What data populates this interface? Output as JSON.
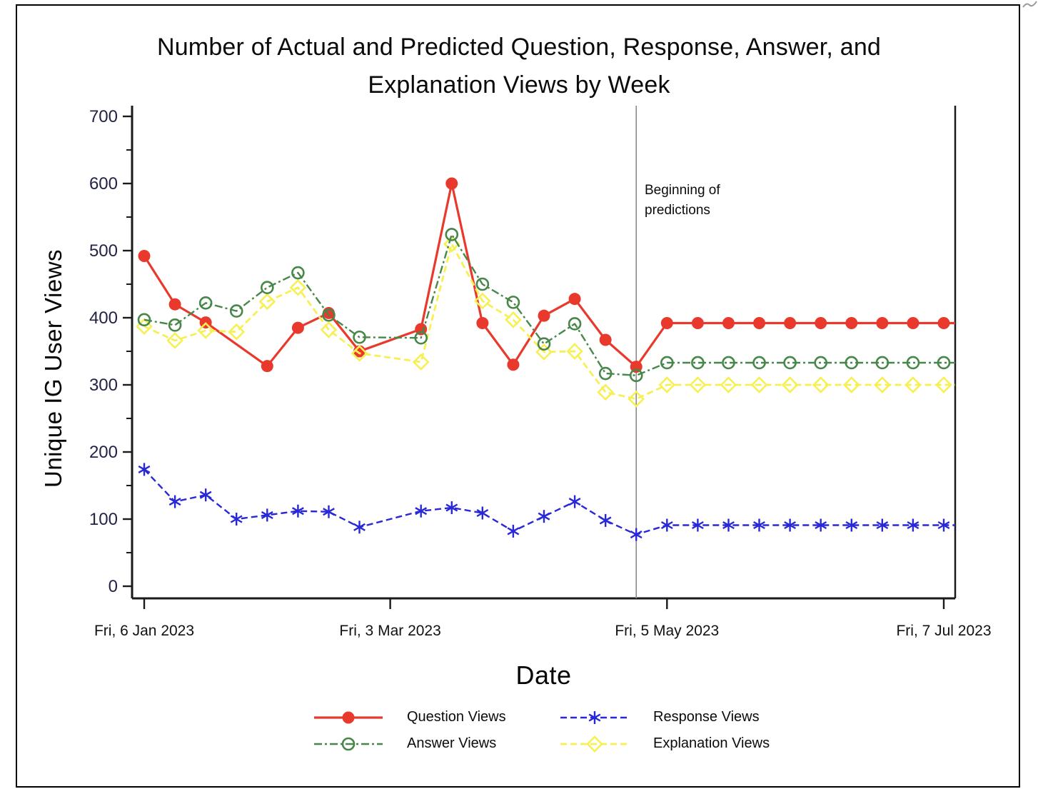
{
  "title": {
    "line1": "Number of Actual and Predicted Question, Response, Answer, and",
    "line2": "Explanation Views by Week"
  },
  "y_axis": {
    "label": "Unique IG User Views",
    "tick_labels": [
      "0",
      "100",
      "200",
      "300",
      "400",
      "500",
      "600",
      "700"
    ],
    "min": 0,
    "max": 700,
    "major_step": 100,
    "minor_step": 50,
    "tick_label_color": "#232347"
  },
  "x_axis": {
    "label": "Date",
    "ticks": [
      {
        "label": "Fri, 6 Jan 2023",
        "week": 0
      },
      {
        "label": "Fri, 3 Mar 2023",
        "week": 8
      },
      {
        "label": "Fri, 5 May 2023",
        "week": 17
      },
      {
        "label": "Fri, 7 Jul 2023",
        "week": 26
      }
    ],
    "total_weeks": 26,
    "tick_label_color": "#111111"
  },
  "annotation": {
    "line1": "Beginning of",
    "line2": "predictions",
    "week": 16,
    "line_color": "#8a8a8a"
  },
  "chart_data": {
    "type": "line",
    "title": "Number of Actual and Predicted Question, Response, Answer, and Explanation Views by Week",
    "xlabel": "Date",
    "ylabel": "Unique IG User Views",
    "ylim": [
      0,
      700
    ],
    "x_unit": "weeks since Fri, 6 Jan 2023",
    "grid": false,
    "legend_position": "bottom",
    "prediction_boundary_week": 16,
    "series": [
      {
        "name": "Question Views",
        "color": "#e8392c",
        "line_style": "solid",
        "marker": "filled-circle",
        "points": [
          [
            0,
            492
          ],
          [
            1,
            420
          ],
          [
            2,
            393
          ],
          [
            4,
            328
          ],
          [
            5,
            385
          ],
          [
            6,
            407
          ],
          [
            7,
            350
          ],
          [
            9,
            383
          ],
          [
            10,
            600
          ],
          [
            11,
            392
          ],
          [
            12,
            330
          ],
          [
            13,
            403
          ],
          [
            14,
            428
          ],
          [
            15,
            367
          ],
          [
            16,
            327
          ],
          [
            17,
            392
          ],
          [
            18,
            392
          ],
          [
            19,
            392
          ],
          [
            20,
            392
          ],
          [
            21,
            392
          ],
          [
            22,
            392
          ],
          [
            23,
            392
          ],
          [
            24,
            392
          ],
          [
            25,
            392
          ],
          [
            26,
            392
          ]
        ]
      },
      {
        "name": "Response Views",
        "color": "#2828d7",
        "line_style": "dashed",
        "marker": "asterisk",
        "points": [
          [
            0,
            174
          ],
          [
            1,
            126
          ],
          [
            2,
            136
          ],
          [
            3,
            100
          ],
          [
            4,
            106
          ],
          [
            5,
            112
          ],
          [
            6,
            111
          ],
          [
            7,
            88
          ],
          [
            9,
            112
          ],
          [
            10,
            117
          ],
          [
            11,
            109
          ],
          [
            12,
            82
          ],
          [
            13,
            104
          ],
          [
            14,
            126
          ],
          [
            15,
            98
          ],
          [
            16,
            77
          ],
          [
            17,
            91
          ],
          [
            18,
            91
          ],
          [
            19,
            91
          ],
          [
            20,
            91
          ],
          [
            21,
            91
          ],
          [
            22,
            91
          ],
          [
            23,
            91
          ],
          [
            24,
            91
          ],
          [
            25,
            91
          ],
          [
            26,
            91
          ]
        ]
      },
      {
        "name": "Answer Views",
        "color": "#478749",
        "line_style": "dash-dot",
        "marker": "open-circle",
        "points": [
          [
            0,
            397
          ],
          [
            1,
            389
          ],
          [
            2,
            422
          ],
          [
            3,
            410
          ],
          [
            4,
            445
          ],
          [
            5,
            467
          ],
          [
            6,
            404
          ],
          [
            7,
            371
          ],
          [
            9,
            370
          ],
          [
            10,
            524
          ],
          [
            11,
            450
          ],
          [
            12,
            423
          ],
          [
            13,
            361
          ],
          [
            14,
            391
          ],
          [
            15,
            317
          ],
          [
            16,
            314
          ],
          [
            17,
            333
          ],
          [
            18,
            333
          ],
          [
            19,
            333
          ],
          [
            20,
            333
          ],
          [
            21,
            333
          ],
          [
            22,
            333
          ],
          [
            23,
            333
          ],
          [
            24,
            333
          ],
          [
            25,
            333
          ],
          [
            26,
            333
          ]
        ]
      },
      {
        "name": "Explanation Views",
        "color": "#f7f055",
        "line_style": "dashed",
        "marker": "open-diamond",
        "points": [
          [
            0,
            387
          ],
          [
            1,
            366
          ],
          [
            2,
            381
          ],
          [
            3,
            379
          ],
          [
            4,
            424
          ],
          [
            5,
            445
          ],
          [
            6,
            382
          ],
          [
            7,
            347
          ],
          [
            9,
            334
          ],
          [
            10,
            510
          ],
          [
            11,
            425
          ],
          [
            12,
            397
          ],
          [
            13,
            349
          ],
          [
            14,
            350
          ],
          [
            15,
            289
          ],
          [
            16,
            279
          ],
          [
            17,
            300
          ],
          [
            18,
            300
          ],
          [
            19,
            300
          ],
          [
            20,
            300
          ],
          [
            21,
            300
          ],
          [
            22,
            300
          ],
          [
            23,
            300
          ],
          [
            24,
            300
          ],
          [
            25,
            300
          ],
          [
            26,
            300
          ]
        ]
      }
    ]
  }
}
